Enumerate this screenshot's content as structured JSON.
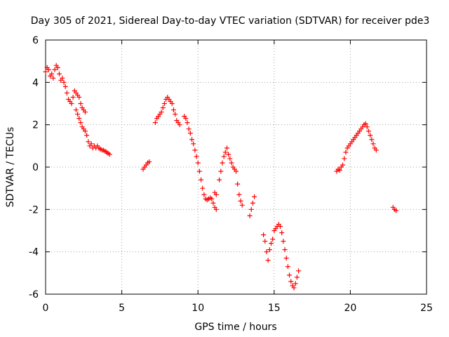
{
  "chart_data": {
    "type": "scatter",
    "title": "Day 305 of 2021, Sidereal Day-to-day VTEC variation (SDTVAR) for receiver pde3",
    "xlabel": "GPS time / hours",
    "ylabel": "SDTVAR / TECUs",
    "xlim": [
      0,
      25
    ],
    "ylim": [
      -6,
      6
    ],
    "xticks": [
      "0",
      "5",
      "10",
      "15",
      "20",
      "25"
    ],
    "yticks": [
      "-6",
      "-4",
      "-2",
      "0",
      "2",
      "4",
      "6"
    ],
    "grid": true,
    "marker": "+",
    "color": "#ff0000",
    "series": [
      {
        "name": "SDTVAR",
        "segments": [
          [
            [
              0.0,
              4.5
            ],
            [
              0.1,
              4.7
            ],
            [
              0.2,
              4.6
            ],
            [
              0.3,
              4.3
            ],
            [
              0.4,
              4.4
            ],
            [
              0.5,
              4.2
            ],
            [
              0.6,
              4.6
            ],
            [
              0.7,
              4.8
            ],
            [
              0.8,
              4.7
            ],
            [
              0.9,
              4.4
            ],
            [
              1.0,
              4.1
            ],
            [
              1.1,
              4.2
            ],
            [
              1.2,
              4.0
            ],
            [
              1.3,
              3.8
            ],
            [
              1.4,
              3.5
            ],
            [
              1.5,
              3.2
            ],
            [
              1.6,
              3.1
            ],
            [
              1.7,
              3.0
            ],
            [
              1.8,
              3.3
            ],
            [
              1.9,
              3.6
            ],
            [
              2.0,
              3.5
            ],
            [
              2.1,
              3.4
            ],
            [
              2.2,
              3.3
            ],
            [
              2.3,
              3.0
            ],
            [
              2.4,
              2.8
            ],
            [
              2.5,
              2.7
            ],
            [
              2.6,
              2.6
            ],
            [
              2.0,
              2.7
            ],
            [
              2.1,
              2.5
            ],
            [
              2.2,
              2.3
            ],
            [
              2.3,
              2.1
            ],
            [
              2.4,
              1.9
            ],
            [
              2.5,
              1.8
            ],
            [
              2.6,
              1.7
            ],
            [
              2.7,
              1.5
            ],
            [
              2.8,
              1.2
            ],
            [
              2.9,
              1.0
            ],
            [
              3.0,
              1.1
            ],
            [
              3.1,
              0.9
            ],
            [
              3.2,
              1.0
            ],
            [
              3.3,
              0.9
            ],
            [
              3.4,
              1.0
            ],
            [
              3.5,
              0.9
            ],
            [
              3.6,
              0.85
            ],
            [
              3.7,
              0.8
            ],
            [
              3.8,
              0.8
            ],
            [
              3.9,
              0.75
            ],
            [
              4.0,
              0.7
            ],
            [
              4.1,
              0.65
            ],
            [
              4.2,
              0.6
            ]
          ],
          [
            [
              6.4,
              -0.1
            ],
            [
              6.5,
              0.0
            ],
            [
              6.6,
              0.1
            ],
            [
              6.7,
              0.2
            ],
            [
              6.8,
              0.25
            ]
          ],
          [
            [
              7.2,
              2.1
            ],
            [
              7.3,
              2.3
            ],
            [
              7.4,
              2.4
            ],
            [
              7.5,
              2.5
            ],
            [
              7.6,
              2.6
            ],
            [
              7.7,
              2.8
            ],
            [
              7.8,
              3.0
            ],
            [
              7.9,
              3.2
            ],
            [
              8.0,
              3.3
            ],
            [
              8.1,
              3.2
            ],
            [
              8.2,
              3.1
            ],
            [
              8.3,
              3.0
            ],
            [
              8.4,
              2.7
            ],
            [
              8.5,
              2.5
            ],
            [
              8.6,
              2.2
            ],
            [
              8.7,
              2.1
            ],
            [
              8.8,
              2.0
            ]
          ],
          [
            [
              9.1,
              2.4
            ],
            [
              9.2,
              2.3
            ],
            [
              9.3,
              2.1
            ],
            [
              9.4,
              1.8
            ],
            [
              9.5,
              1.6
            ],
            [
              9.6,
              1.3
            ],
            [
              9.7,
              1.1
            ],
            [
              9.8,
              0.8
            ],
            [
              9.9,
              0.5
            ],
            [
              10.0,
              0.2
            ],
            [
              10.1,
              -0.2
            ],
            [
              10.2,
              -0.6
            ],
            [
              10.3,
              -1.0
            ],
            [
              10.4,
              -1.3
            ],
            [
              10.5,
              -1.5
            ],
            [
              10.6,
              -1.55
            ],
            [
              10.7,
              -1.5
            ],
            [
              10.8,
              -1.45
            ],
            [
              10.9,
              -1.5
            ],
            [
              11.0,
              -1.7
            ],
            [
              11.1,
              -1.9
            ],
            [
              11.2,
              -2.0
            ],
            [
              11.1,
              -1.2
            ],
            [
              11.2,
              -1.3
            ]
          ],
          [
            [
              11.4,
              -0.6
            ],
            [
              11.5,
              -0.2
            ],
            [
              11.6,
              0.2
            ],
            [
              11.7,
              0.5
            ],
            [
              11.8,
              0.7
            ],
            [
              11.9,
              0.9
            ],
            [
              12.0,
              0.6
            ],
            [
              12.1,
              0.4
            ],
            [
              12.2,
              0.2
            ],
            [
              12.3,
              0.0
            ],
            [
              12.4,
              -0.1
            ],
            [
              12.5,
              -0.2
            ],
            [
              12.6,
              -0.8
            ],
            [
              12.7,
              -1.3
            ],
            [
              12.8,
              -1.6
            ],
            [
              12.9,
              -1.8
            ]
          ],
          [
            [
              13.4,
              -2.3
            ],
            [
              13.5,
              -2.0
            ],
            [
              13.6,
              -1.7
            ],
            [
              13.7,
              -1.4
            ]
          ],
          [
            [
              14.3,
              -3.2
            ],
            [
              14.4,
              -3.5
            ],
            [
              14.5,
              -4.0
            ],
            [
              14.6,
              -4.4
            ],
            [
              14.7,
              -3.9
            ],
            [
              14.8,
              -3.6
            ],
            [
              14.9,
              -3.4
            ],
            [
              15.0,
              -3.0
            ],
            [
              15.1,
              -2.9
            ],
            [
              15.2,
              -2.8
            ],
            [
              15.3,
              -2.7
            ],
            [
              15.4,
              -2.8
            ],
            [
              15.5,
              -3.1
            ],
            [
              15.6,
              -3.5
            ],
            [
              15.7,
              -3.9
            ],
            [
              15.8,
              -4.3
            ],
            [
              15.9,
              -4.7
            ],
            [
              16.0,
              -5.1
            ],
            [
              16.1,
              -5.4
            ],
            [
              16.2,
              -5.6
            ],
            [
              16.3,
              -5.7
            ],
            [
              16.4,
              -5.5
            ],
            [
              16.5,
              -5.2
            ],
            [
              16.6,
              -4.9
            ]
          ],
          [
            [
              19.1,
              -0.2
            ],
            [
              19.2,
              -0.1
            ],
            [
              19.3,
              -0.15
            ],
            [
              19.4,
              0.0
            ],
            [
              19.5,
              0.1
            ],
            [
              19.6,
              0.4
            ],
            [
              19.7,
              0.7
            ],
            [
              19.8,
              0.9
            ],
            [
              19.9,
              1.0
            ],
            [
              20.0,
              1.1
            ],
            [
              20.1,
              1.2
            ],
            [
              20.2,
              1.3
            ],
            [
              20.3,
              1.4
            ],
            [
              20.4,
              1.5
            ],
            [
              20.5,
              1.6
            ],
            [
              20.6,
              1.7
            ],
            [
              20.7,
              1.8
            ],
            [
              20.8,
              1.9
            ],
            [
              20.9,
              2.0
            ],
            [
              21.0,
              2.05
            ],
            [
              21.1,
              1.9
            ],
            [
              21.2,
              1.7
            ],
            [
              21.3,
              1.5
            ],
            [
              21.4,
              1.3
            ],
            [
              21.5,
              1.1
            ],
            [
              21.6,
              0.9
            ],
            [
              21.7,
              0.8
            ]
          ],
          [
            [
              22.8,
              -1.9
            ],
            [
              22.9,
              -2.0
            ],
            [
              23.0,
              -2.05
            ]
          ]
        ]
      }
    ]
  }
}
